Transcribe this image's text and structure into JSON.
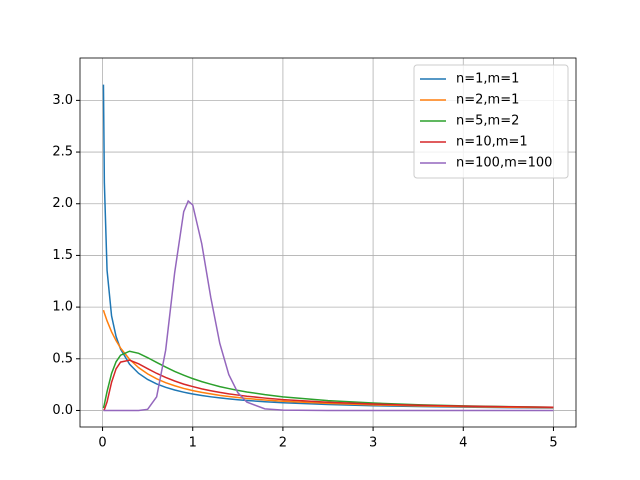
{
  "chart_data": {
    "type": "line",
    "x": [
      0.01,
      0.02,
      0.05,
      0.1,
      0.15,
      0.2,
      0.3,
      0.4,
      0.5,
      0.6,
      0.7,
      0.8,
      0.9,
      0.95,
      1.0,
      1.1,
      1.2,
      1.3,
      1.4,
      1.5,
      1.6,
      1.8,
      2.0,
      2.5,
      3.0,
      3.5,
      4.0,
      4.5,
      5.0
    ],
    "series": [
      {
        "name": "n=1,m=1",
        "color": "#1f77b4",
        "values": [
          3.152,
          2.207,
          1.356,
          0.915,
          0.715,
          0.593,
          0.447,
          0.359,
          0.3,
          0.257,
          0.224,
          0.198,
          0.177,
          0.1675,
          0.159,
          0.1445,
          0.132,
          0.1214,
          0.1121,
          0.104,
          0.0968,
          0.0847,
          0.075,
          0.0575,
          0.0459,
          0.0378,
          0.0318,
          0.0273,
          0.0237
        ]
      },
      {
        "name": "n=2,m=1",
        "color": "#ff7f0e",
        "values": [
          0.971,
          0.943,
          0.867,
          0.761,
          0.675,
          0.604,
          0.494,
          0.414,
          0.354,
          0.306,
          0.269,
          0.239,
          0.213,
          0.2025,
          0.192,
          0.175,
          0.16,
          0.146,
          0.135,
          0.125,
          0.116,
          0.101,
          0.0894,
          0.068,
          0.054,
          0.0442,
          0.037,
          0.0316,
          0.0274
        ]
      },
      {
        "name": "n=5,m=2",
        "color": "#2ca02c",
        "values": [
          0.0227,
          0.0589,
          0.183,
          0.358,
          0.471,
          0.535,
          0.573,
          0.553,
          0.511,
          0.465,
          0.42,
          0.378,
          0.341,
          0.324,
          0.308,
          0.279,
          0.254,
          0.231,
          0.212,
          0.194,
          0.179,
          0.153,
          0.132,
          0.0951,
          0.0717,
          0.0558,
          0.0447,
          0.0366,
          0.0306
        ]
      },
      {
        "name": "n=10,m=1",
        "color": "#d62728",
        "values": [
          0.00073,
          0.0072,
          0.0827,
          0.272,
          0.403,
          0.468,
          0.487,
          0.451,
          0.404,
          0.359,
          0.319,
          0.285,
          0.255,
          0.2425,
          0.231,
          0.209,
          0.191,
          0.175,
          0.161,
          0.149,
          0.138,
          0.12,
          0.105,
          0.0793,
          0.0625,
          0.0508,
          0.0424,
          0.0361,
          0.0312
        ]
      },
      {
        "name": "n=100,m=100",
        "color": "#9467bd",
        "values": [
          0,
          0,
          0,
          0,
          0,
          0,
          0,
          0.0002,
          0.011,
          0.132,
          0.584,
          1.335,
          1.923,
          2.026,
          1.988,
          1.613,
          1.094,
          0.649,
          0.347,
          0.172,
          0.081,
          0.0156,
          0.0028,
          3e-05,
          0,
          0,
          0,
          0,
          0
        ]
      }
    ],
    "xlim": [
      -0.25,
      5.25
    ],
    "xticks": [
      0,
      1,
      2,
      3,
      4,
      5
    ],
    "ylim": [
      -0.16,
      3.41
    ],
    "yticks": [
      {
        "value": 0,
        "label": "0.0"
      },
      {
        "value": 0.5,
        "label": "0.5"
      },
      {
        "value": 1,
        "label": "1.0"
      },
      {
        "value": 1.5,
        "label": "1.5"
      },
      {
        "value": 2,
        "label": "2.0"
      },
      {
        "value": 2.5,
        "label": "2.5"
      },
      {
        "value": 3,
        "label": "3.0"
      }
    ],
    "grid": true,
    "legend": "upper right"
  }
}
